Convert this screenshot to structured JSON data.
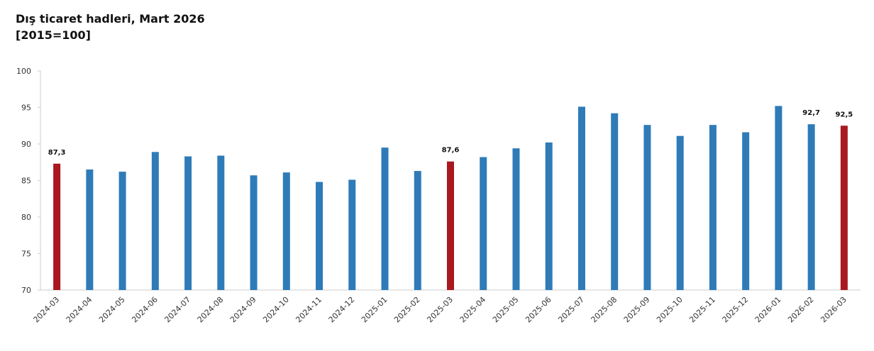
{
  "chart_data": {
    "type": "bar",
    "title": "Dış ticaret hadleri, Mart 2026",
    "subtitle": "[2015=100]",
    "categories": [
      "2024-03",
      "2024-04",
      "2024-05",
      "2024-06",
      "2024-07",
      "2024-08",
      "2024-09",
      "2024-10",
      "2024-11",
      "2024-12",
      "2025-01",
      "2025-02",
      "2025-03",
      "2025-04",
      "2025-05",
      "2025-06",
      "2025-07",
      "2025-08",
      "2025-09",
      "2025-10",
      "2025-11",
      "2025-12",
      "2026-01",
      "2026-02",
      "2026-03"
    ],
    "values": [
      87.3,
      86.5,
      86.2,
      88.9,
      88.3,
      88.4,
      85.7,
      86.1,
      84.8,
      85.1,
      89.5,
      86.3,
      87.6,
      88.2,
      89.4,
      90.2,
      95.1,
      94.2,
      92.6,
      91.1,
      92.6,
      91.6,
      95.2,
      92.7,
      92.5
    ],
    "value_labels": [
      "87,3",
      null,
      null,
      null,
      null,
      null,
      null,
      null,
      null,
      null,
      null,
      null,
      "87,6",
      null,
      null,
      null,
      null,
      null,
      null,
      null,
      null,
      null,
      null,
      "92,7",
      "92,5"
    ],
    "colors": [
      "#a8181e",
      "#2e7bb8",
      "#2e7bb8",
      "#2e7bb8",
      "#2e7bb8",
      "#2e7bb8",
      "#2e7bb8",
      "#2e7bb8",
      "#2e7bb8",
      "#2e7bb8",
      "#2e7bb8",
      "#2e7bb8",
      "#a8181e",
      "#2e7bb8",
      "#2e7bb8",
      "#2e7bb8",
      "#2e7bb8",
      "#2e7bb8",
      "#2e7bb8",
      "#2e7bb8",
      "#2e7bb8",
      "#2e7bb8",
      "#2e7bb8",
      "#2e7bb8",
      "#a8181e"
    ],
    "ylim": [
      70,
      100
    ],
    "yticks": [
      70,
      75,
      80,
      85,
      90,
      95,
      100
    ],
    "grid": false
  }
}
